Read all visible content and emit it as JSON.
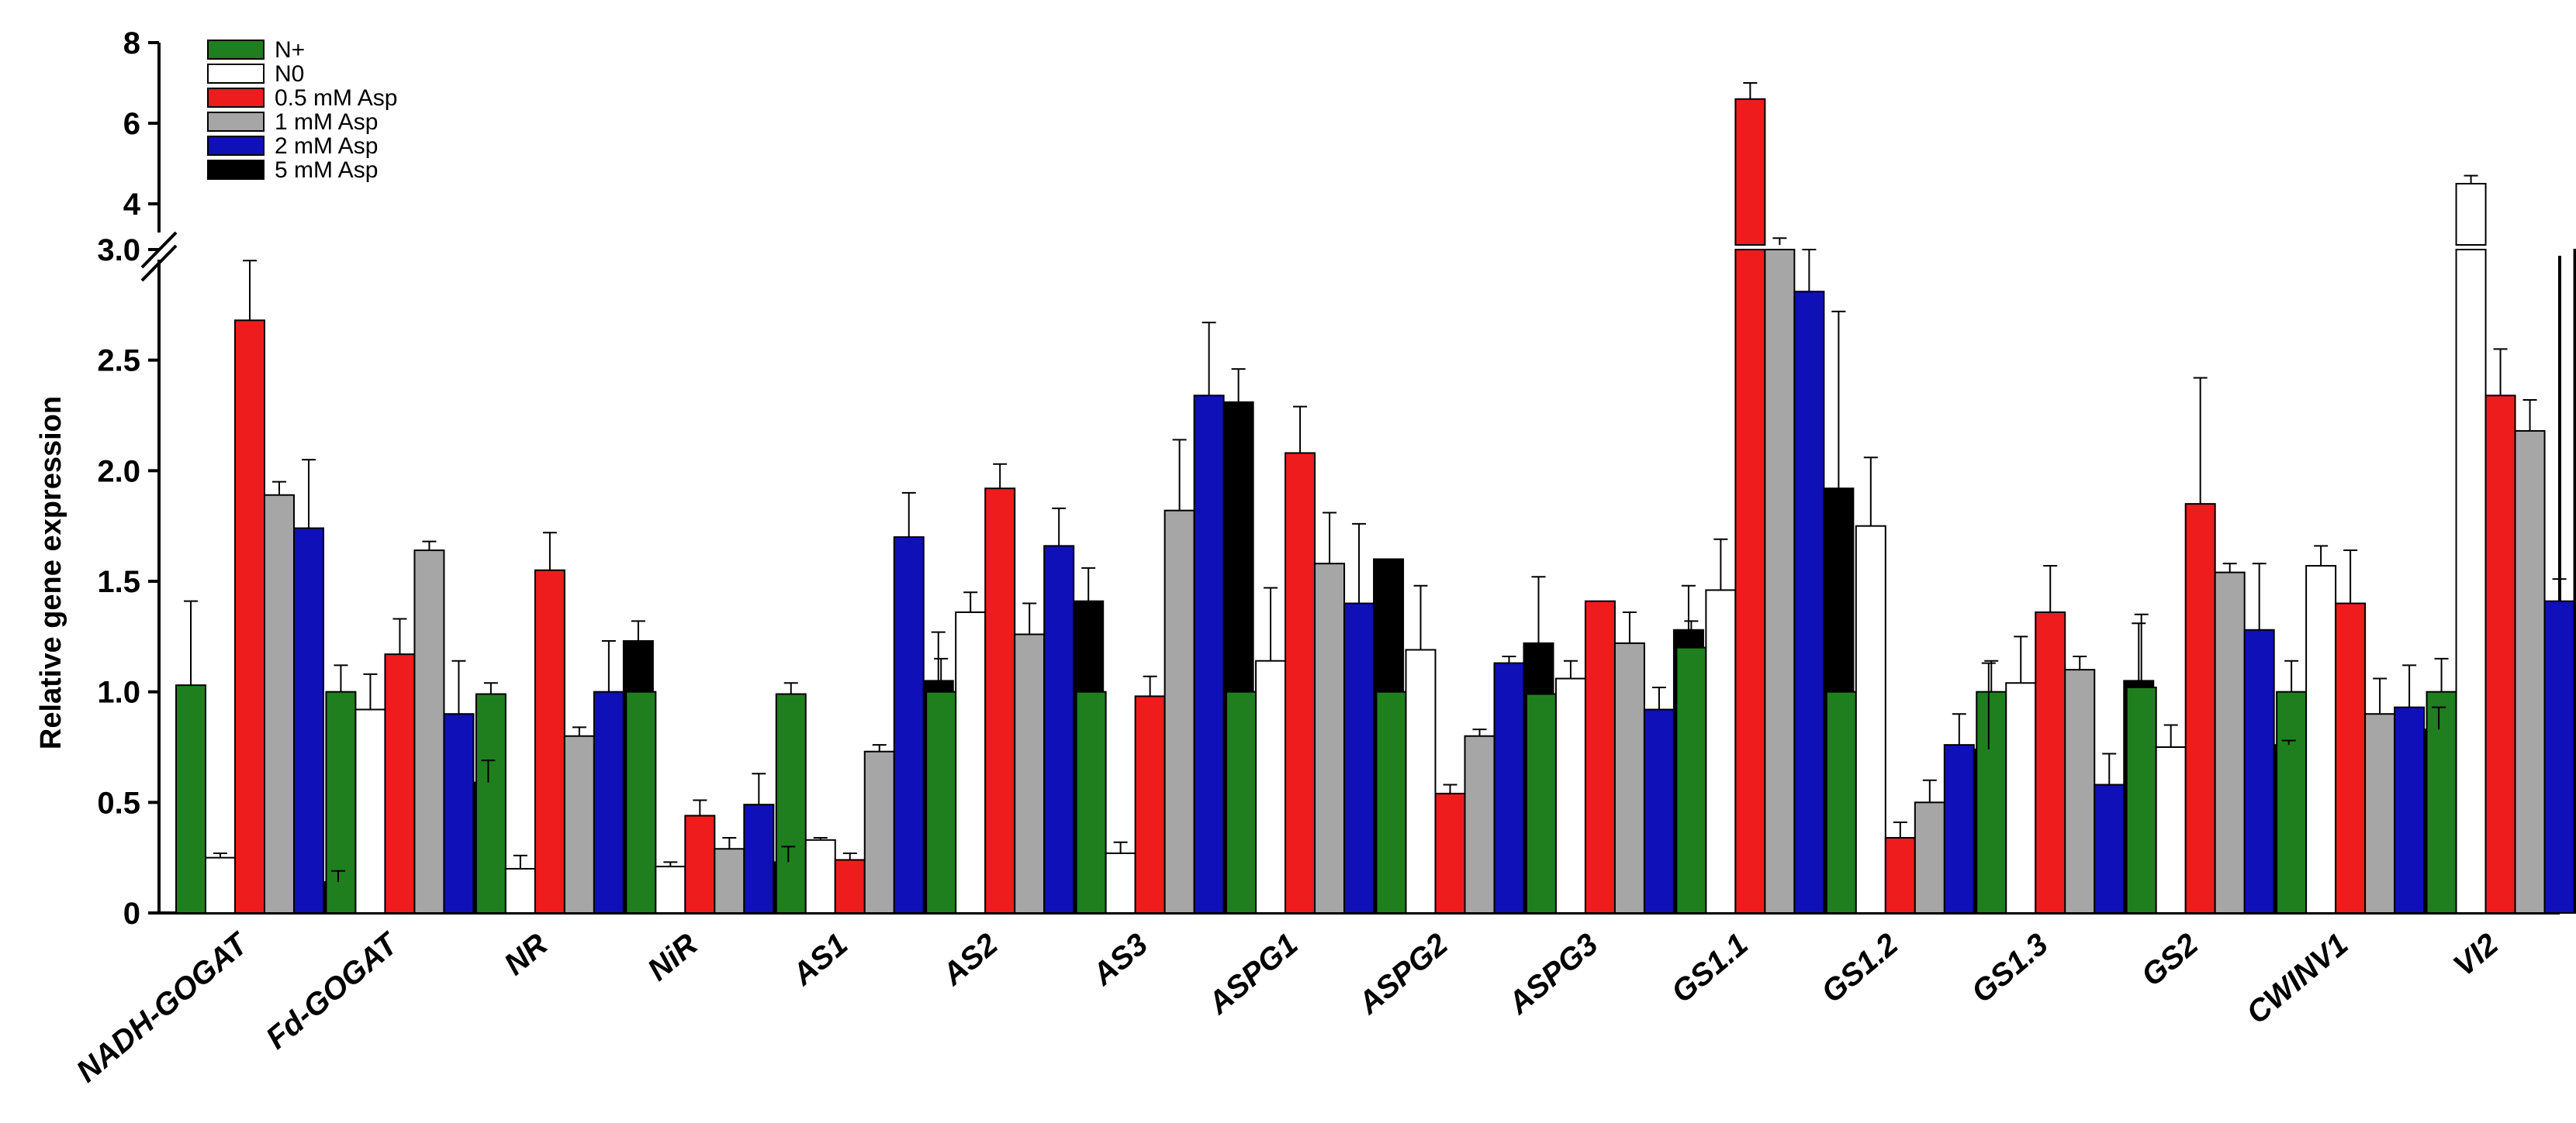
{
  "chart_data": {
    "type": "bar",
    "title": "",
    "xlabel": "",
    "ylabel": "Relative gene expression",
    "y_axis_break": true,
    "lower_range": [
      0,
      3.0
    ],
    "upper_range": [
      3.0,
      8
    ],
    "lower_ticks": [
      "0",
      "0.5",
      "1.0",
      "1.5",
      "2.0",
      "2.5",
      "3.0"
    ],
    "upper_ticks": [
      "4",
      "6",
      "8"
    ],
    "lower_tick_values": [
      0,
      0.5,
      1.0,
      1.5,
      2.0,
      2.5,
      3.0
    ],
    "upper_tick_values": [
      4,
      6,
      8
    ],
    "legend_position": "top-left",
    "grid": false,
    "categories": [
      "NADH-GOGAT",
      "Fd-GOGAT",
      "NR",
      "NiR",
      "AS1",
      "AS2",
      "AS3",
      "ASPG1",
      "ASPG2",
      "ASPG3",
      "GS1.1",
      "GS1.2",
      "GS1.3",
      "GS2",
      "CWINV1",
      "VI2"
    ],
    "series": [
      {
        "name": "N+",
        "color": "#1f7f1f",
        "values": [
          1.03,
          1.0,
          0.99,
          1.0,
          0.99,
          1.0,
          1.0,
          1.0,
          1.0,
          0.99,
          1.2,
          1.0,
          1.0,
          1.02,
          1.0,
          1.0
        ],
        "errors": [
          0.38,
          0.12,
          0.05,
          0.05,
          0.05,
          0.15,
          0.16,
          0.12,
          0.17,
          0.03,
          0.12,
          0.17,
          0.14,
          0.33,
          0.14,
          0.15
        ]
      },
      {
        "name": "N0",
        "color": "#ffffff",
        "values": [
          0.25,
          0.92,
          0.2,
          0.21,
          0.33,
          1.36,
          0.27,
          1.14,
          1.19,
          1.06,
          1.46,
          1.75,
          1.04,
          0.75,
          1.57,
          4.5
        ],
        "errors": [
          0.02,
          0.16,
          0.06,
          0.02,
          0.01,
          0.09,
          0.05,
          0.33,
          0.29,
          0.08,
          0.23,
          0.31,
          0.21,
          0.1,
          0.09,
          0.2
        ]
      },
      {
        "name": "0.5 mM Asp",
        "color": "#ee1c1c",
        "values": [
          2.68,
          1.17,
          1.55,
          0.44,
          0.24,
          1.92,
          0.98,
          2.08,
          0.54,
          1.41,
          6.6,
          0.34,
          1.36,
          1.85,
          1.4,
          2.34
        ],
        "errors": [
          0.27,
          0.16,
          0.17,
          0.07,
          0.03,
          0.11,
          0.09,
          0.21,
          0.04,
          0.0,
          0.4,
          0.07,
          0.21,
          0.57,
          0.24,
          0.21
        ]
      },
      {
        "name": "1 mM Asp",
        "color": "#a6a6a6",
        "values": [
          1.89,
          1.64,
          0.8,
          0.29,
          0.73,
          1.26,
          1.82,
          1.58,
          0.8,
          1.22,
          3.1,
          0.5,
          1.1,
          1.54,
          0.9,
          2.18
        ],
        "errors": [
          0.06,
          0.04,
          0.04,
          0.05,
          0.03,
          0.14,
          0.32,
          0.23,
          0.03,
          0.14,
          0.15,
          0.1,
          0.06,
          0.04,
          0.16,
          0.14
        ]
      },
      {
        "name": "2 mM Asp",
        "color": "#1010b8",
        "values": [
          1.74,
          0.9,
          1.0,
          0.49,
          1.7,
          1.66,
          2.34,
          1.4,
          1.13,
          0.92,
          2.81,
          0.76,
          0.58,
          1.28,
          0.93,
          1.41
        ],
        "errors": [
          0.31,
          0.24,
          0.23,
          0.14,
          0.2,
          0.17,
          0.33,
          0.36,
          0.03,
          0.1,
          0.19,
          0.14,
          0.14,
          0.3,
          0.19,
          0.1
        ]
      },
      {
        "name": "5 mM Asp",
        "color": "#000000",
        "values": [
          0.14,
          0.59,
          1.23,
          0.23,
          1.05,
          1.41,
          2.31,
          1.6,
          1.22,
          1.28,
          1.92,
          0.74,
          1.05,
          0.76,
          0.83,
          3.0
        ],
        "errors": [
          0.05,
          0.1,
          0.09,
          0.07,
          0.22,
          0.15,
          0.15,
          0.0,
          0.3,
          0.2,
          0.8,
          0.39,
          0.26,
          0.02,
          0.1,
          0.7
        ]
      }
    ]
  }
}
